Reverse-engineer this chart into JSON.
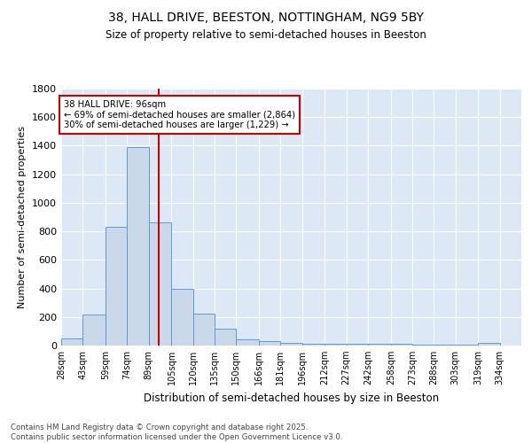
{
  "title1": "38, HALL DRIVE, BEESTON, NOTTINGHAM, NG9 5BY",
  "title2": "Size of property relative to semi-detached houses in Beeston",
  "xlabel": "Distribution of semi-detached houses by size in Beeston",
  "ylabel": "Number of semi-detached properties",
  "property_value": 96,
  "annotation_title": "38 HALL DRIVE: 96sqm",
  "annotation_line1": "← 69% of semi-detached houses are smaller (2,864)",
  "annotation_line2": "30% of semi-detached houses are larger (1,229) →",
  "bin_labels": [
    "28sqm",
    "43sqm",
    "59sqm",
    "74sqm",
    "89sqm",
    "105sqm",
    "120sqm",
    "135sqm",
    "150sqm",
    "166sqm",
    "181sqm",
    "196sqm",
    "212sqm",
    "227sqm",
    "242sqm",
    "258sqm",
    "273sqm",
    "288sqm",
    "303sqm",
    "319sqm",
    "334sqm"
  ],
  "bin_edges": [
    28,
    43,
    59,
    74,
    89,
    105,
    120,
    135,
    150,
    166,
    181,
    196,
    212,
    227,
    242,
    258,
    273,
    288,
    303,
    319,
    334
  ],
  "bar_values": [
    50,
    220,
    830,
    1390,
    865,
    395,
    225,
    120,
    45,
    28,
    20,
    15,
    10,
    10,
    10,
    10,
    8,
    8,
    5,
    20,
    0
  ],
  "bar_color": "#c9d9ea",
  "bar_edge_color": "#5b9bd5",
  "vline_x": 96,
  "vline_color": "#cc0000",
  "background_color": "#dce8f5",
  "footer_text": "Contains HM Land Registry data © Crown copyright and database right 2025.\nContains public sector information licensed under the Open Government Licence v3.0.",
  "ylim": [
    0,
    1800
  ],
  "yticks": [
    0,
    200,
    400,
    600,
    800,
    1000,
    1200,
    1400,
    1600,
    1800
  ]
}
